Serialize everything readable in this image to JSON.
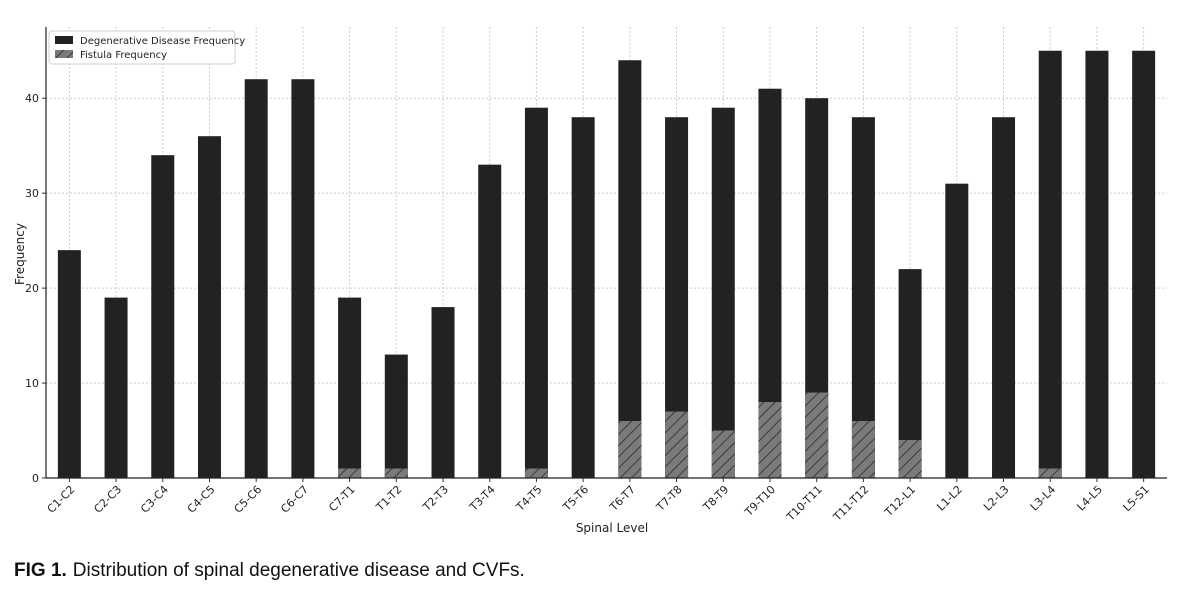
{
  "chart_data": {
    "type": "bar",
    "stacked": false,
    "overlay": true,
    "categories": [
      "C1-C2",
      "C2-C3",
      "C3-C4",
      "C4-C5",
      "C5-C6",
      "C6-C7",
      "C7-T1",
      "T1-T2",
      "T2-T3",
      "T3-T4",
      "T4-T5",
      "T5-T6",
      "T6-T7",
      "T7-T8",
      "T8-T9",
      "T9-T10",
      "T10-T11",
      "T11-T12",
      "T12-L1",
      "L1-L2",
      "L2-L3",
      "L3-L4",
      "L4-L5",
      "L5-S1"
    ],
    "series": [
      {
        "name": "Degenerative Disease Frequency",
        "values": [
          24,
          19,
          34,
          36,
          42,
          42,
          19,
          13,
          18,
          33,
          39,
          38,
          44,
          38,
          39,
          41,
          40,
          38,
          22,
          31,
          38,
          45,
          45,
          45
        ],
        "color": "#222222",
        "pattern": "solid"
      },
      {
        "name": "Fistula Frequency",
        "values": [
          0,
          0,
          0,
          0,
          0,
          0,
          1,
          1,
          0,
          0,
          1,
          0,
          6,
          7,
          5,
          8,
          9,
          6,
          4,
          0,
          0,
          1,
          0,
          0
        ],
        "color": "#7a7a7a",
        "pattern": "hatch"
      }
    ],
    "xlabel": "Spinal Level",
    "ylabel": "Frequency",
    "ylim": [
      0,
      47.5
    ],
    "yticks": [
      0,
      10,
      20,
      30,
      40
    ],
    "grid": true,
    "legend_position": "top-left"
  },
  "caption": {
    "label": "FIG 1.",
    "text": "Distribution of spinal degenerative disease and CVFs."
  }
}
